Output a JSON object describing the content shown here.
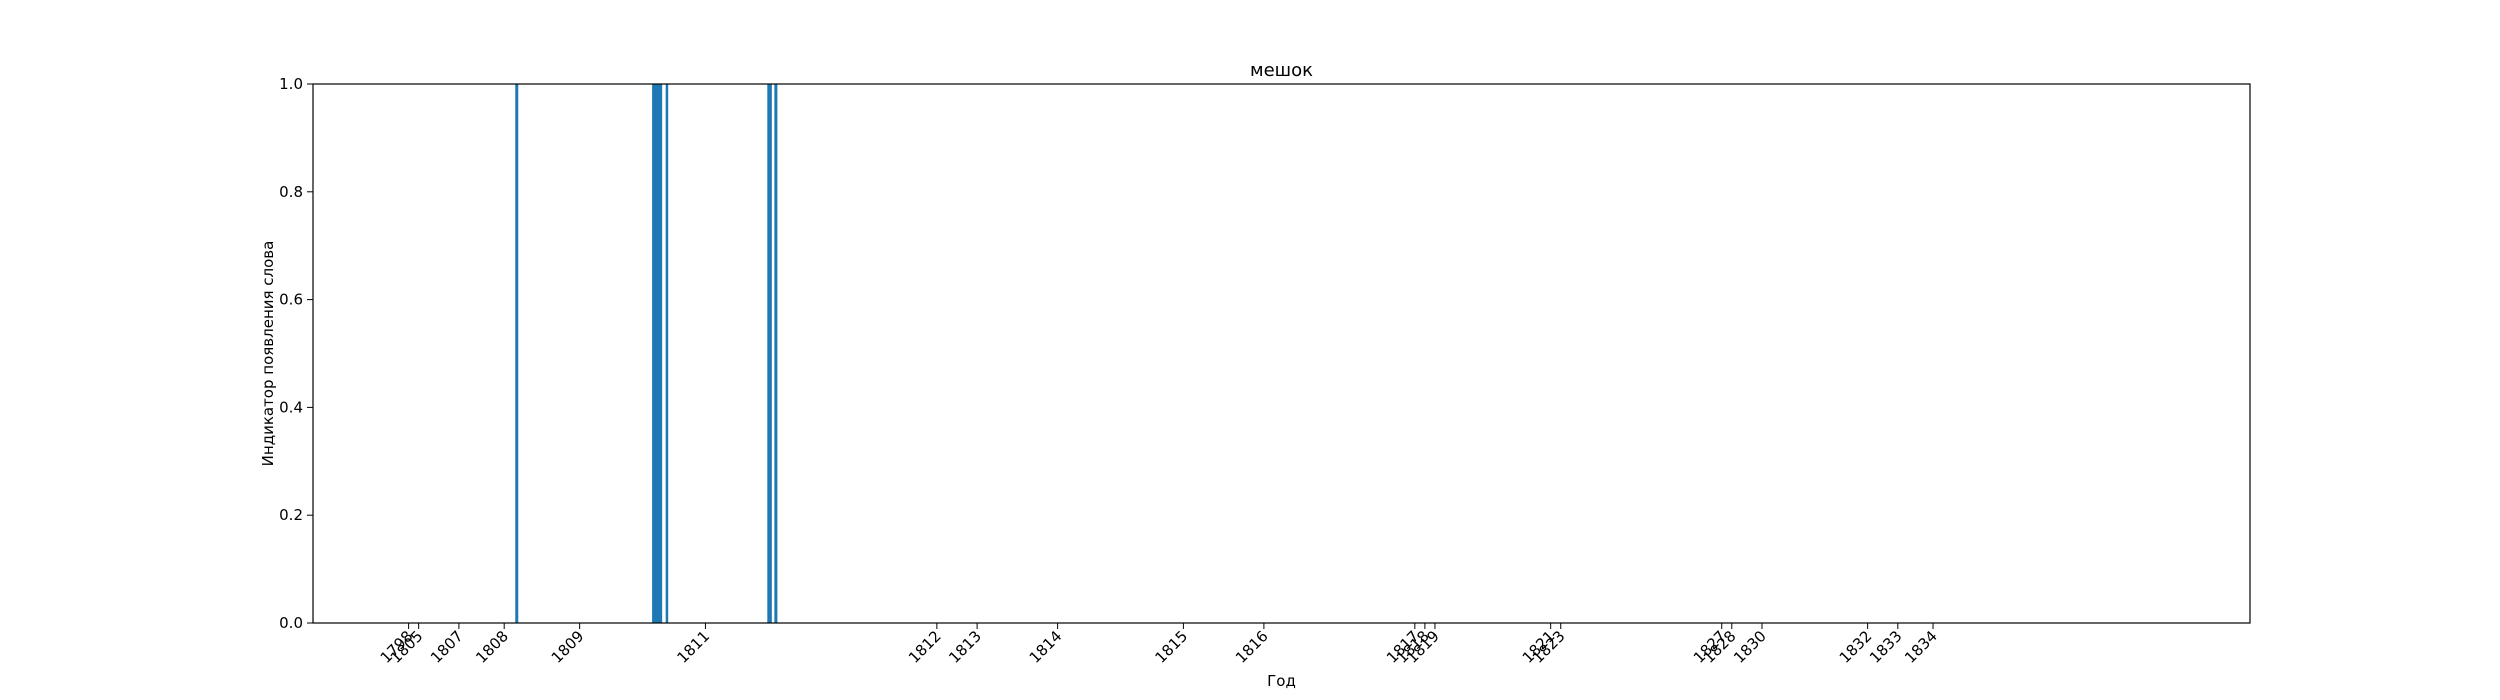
{
  "chart_data": {
    "type": "bar",
    "title": "мешок",
    "xlabel": "Год",
    "ylabel": "Индикатор появления слова",
    "xlim": [
      1800.4,
      1838.9
    ],
    "ylim": [
      0,
      1
    ],
    "y_ticks": [
      "0.0",
      "0.2",
      "0.4",
      "0.6",
      "0.8",
      "1.0"
    ],
    "x_ticks": [
      {
        "label": "1798",
        "x": 1802.3
      },
      {
        "label": "1805",
        "x": 1802.5
      },
      {
        "label": "1807",
        "x": 1803.3
      },
      {
        "label": "1808",
        "x": 1804.2
      },
      {
        "label": "1809",
        "x": 1805.7
      },
      {
        "label": "1811",
        "x": 1808.2
      },
      {
        "label": "1812",
        "x": 1812.8
      },
      {
        "label": "1813",
        "x": 1813.6
      },
      {
        "label": "1814",
        "x": 1815.2
      },
      {
        "label": "1815",
        "x": 1817.7
      },
      {
        "label": "1816",
        "x": 1819.3
      },
      {
        "label": "1817",
        "x": 1822.3
      },
      {
        "label": "1818",
        "x": 1822.5
      },
      {
        "label": "1819",
        "x": 1822.7
      },
      {
        "label": "1821",
        "x": 1825.0
      },
      {
        "label": "1823",
        "x": 1825.2
      },
      {
        "label": "1827",
        "x": 1828.4
      },
      {
        "label": "1828",
        "x": 1828.6
      },
      {
        "label": "1830",
        "x": 1829.2
      },
      {
        "label": "1832",
        "x": 1831.3
      },
      {
        "label": "1833",
        "x": 1831.9
      },
      {
        "label": "1834",
        "x": 1832.6
      }
    ],
    "bars": [
      {
        "x0": 1804.42,
        "x1": 1804.48,
        "value": 1
      },
      {
        "x0": 1807.14,
        "x1": 1807.34,
        "value": 1
      },
      {
        "x0": 1807.41,
        "x1": 1807.46,
        "value": 1
      },
      {
        "x0": 1809.43,
        "x1": 1809.52,
        "value": 1
      },
      {
        "x0": 1809.57,
        "x1": 1809.63,
        "value": 1
      }
    ],
    "grid": false,
    "color": "#1f77b4"
  }
}
